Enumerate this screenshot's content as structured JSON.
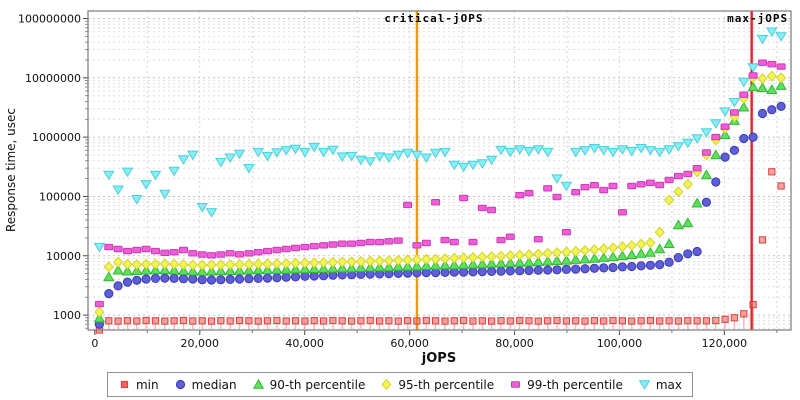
{
  "chart_data": {
    "type": "scatter",
    "title": "",
    "xlabel": "jOPS",
    "ylabel": "Response time, usec",
    "xlim": [
      -1300,
      132700
    ],
    "ylim": [
      560,
      134000000
    ],
    "y_scale": "log",
    "grid": true,
    "legend_position": "bottom",
    "x_ticks": {
      "values": [
        0,
        20000,
        40000,
        60000,
        80000,
        100000,
        120000
      ],
      "labels": [
        "0",
        "20,000",
        "40,000",
        "60,000",
        "80,000",
        "100,000",
        "120,000"
      ],
      "minor_step": 10000
    },
    "y_ticks": {
      "values": [
        1000,
        10000,
        100000,
        1000000,
        10000000,
        100000000
      ],
      "labels": [
        "1000",
        "10000",
        "100000",
        "1000000",
        "10000000",
        "100000000"
      ]
    },
    "annotations": [
      {
        "label": "critical-jOPS",
        "x": 61400,
        "color": "#e8a000",
        "label_dx": 17
      },
      {
        "label": "max-jOPS",
        "x": 125200,
        "color": "#e62222",
        "label_dx": 6
      }
    ],
    "x": [
      880,
      2660,
      4440,
      6220,
      8000,
      9780,
      11560,
      13340,
      15120,
      16900,
      18680,
      20460,
      22240,
      24020,
      25800,
      27580,
      29360,
      31140,
      32920,
      34700,
      36480,
      38260,
      40040,
      41820,
      43600,
      45380,
      47160,
      48940,
      50720,
      52500,
      54280,
      56060,
      57840,
      59620,
      61400,
      63180,
      64960,
      66740,
      68520,
      70300,
      72080,
      73860,
      75640,
      77420,
      79200,
      80980,
      82760,
      84540,
      86320,
      88100,
      89880,
      91660,
      93440,
      95220,
      97000,
      98780,
      100560,
      102340,
      104120,
      105900,
      107680,
      109460,
      111240,
      113020,
      114800,
      116580,
      118360,
      120140,
      121920,
      123700,
      125480,
      127260,
      129040,
      130820
    ],
    "series": [
      {
        "name": "min",
        "marker": "square",
        "color": "#f4645f",
        "edge": "#d94040",
        "stem": true,
        "values": [
          560,
          800,
          790,
          805,
          795,
          810,
          800,
          790,
          800,
          810,
          795,
          800,
          790,
          805,
          795,
          810,
          800,
          790,
          800,
          810,
          795,
          800,
          790,
          805,
          795,
          810,
          800,
          790,
          800,
          810,
          795,
          800,
          790,
          805,
          795,
          810,
          800,
          790,
          800,
          810,
          795,
          800,
          790,
          805,
          795,
          810,
          800,
          790,
          800,
          810,
          795,
          800,
          790,
          805,
          795,
          810,
          800,
          790,
          800,
          810,
          795,
          800,
          795,
          805,
          800,
          800,
          810,
          850,
          900,
          1050,
          1500,
          18500,
          260000,
          150000
        ]
      },
      {
        "name": "median",
        "marker": "circle",
        "color": "#5e5ed6",
        "edge": "#3939b8",
        "stem": false,
        "values": [
          700,
          2300,
          3100,
          3600,
          3850,
          4050,
          4150,
          4200,
          4150,
          4100,
          4050,
          3950,
          3900,
          3950,
          4000,
          4050,
          4100,
          4150,
          4200,
          4250,
          4350,
          4400,
          4500,
          4550,
          4600,
          4700,
          4750,
          4800,
          4850,
          4900,
          4950,
          5000,
          5050,
          5100,
          5150,
          5200,
          5200,
          5250,
          5300,
          5300,
          5350,
          5400,
          5450,
          5500,
          5550,
          5600,
          5650,
          5700,
          5750,
          5800,
          5900,
          5950,
          6050,
          6150,
          6250,
          6350,
          6500,
          6600,
          6750,
          6900,
          7100,
          7800,
          9300,
          10800,
          11800,
          80000,
          175000,
          460000,
          600000,
          950000,
          1000000,
          2500000,
          2900000,
          3300000
        ]
      },
      {
        "name": "90-th percentile",
        "marker": "triangle-up",
        "color": "#5ee05e",
        "edge": "#32b832",
        "stem": false,
        "values": [
          890,
          4400,
          5700,
          5500,
          5600,
          5700,
          5750,
          5800,
          5700,
          5600,
          5500,
          5450,
          5500,
          5550,
          5600,
          5650,
          5700,
          5750,
          5800,
          5850,
          5900,
          5950,
          6000,
          6050,
          6100,
          6150,
          6200,
          6250,
          6300,
          6400,
          6450,
          6500,
          6600,
          6650,
          6700,
          6800,
          6850,
          6950,
          7000,
          7100,
          7200,
          7300,
          7400,
          7500,
          7600,
          7700,
          7800,
          7950,
          8100,
          8250,
          8400,
          8600,
          8800,
          9000,
          9300,
          9600,
          10000,
          10400,
          10900,
          11400,
          13000,
          16000,
          33000,
          36000,
          77000,
          230000,
          500000,
          1100000,
          1900000,
          3200000,
          7000000,
          6800000,
          6300000,
          7400000
        ]
      },
      {
        "name": "95-th percentile",
        "marker": "diamond",
        "color": "#f2f259",
        "edge": "#d4d428",
        "stem": false,
        "values": [
          1120,
          6500,
          7800,
          7200,
          7100,
          7200,
          7250,
          7300,
          7200,
          7100,
          7000,
          6950,
          7000,
          7050,
          7100,
          7150,
          7200,
          7250,
          7300,
          7350,
          7400,
          7500,
          7550,
          7600,
          7700,
          7750,
          7850,
          7900,
          8000,
          8100,
          8200,
          8300,
          8400,
          8500,
          8600,
          8700,
          8800,
          8950,
          9100,
          9250,
          9400,
          9550,
          9700,
          9900,
          10100,
          10300,
          10500,
          10700,
          11000,
          11300,
          11600,
          11900,
          12300,
          12700,
          13100,
          13600,
          14200,
          14900,
          15700,
          16600,
          25000,
          87000,
          120000,
          160000,
          260000,
          500000,
          900000,
          1400000,
          2200000,
          4500000,
          10000000,
          9700000,
          10700000,
          10000000
        ]
      },
      {
        "name": "99-th percentile",
        "marker": "bar",
        "color": "#ef5ed8",
        "edge": "#cc3ab6",
        "stem": false,
        "values": [
          1530,
          14000,
          13000,
          12000,
          12500,
          13000,
          12000,
          11200,
          11500,
          12500,
          11000,
          10500,
          10200,
          10500,
          11000,
          10600,
          11000,
          11500,
          12000,
          12500,
          13000,
          13500,
          14000,
          14500,
          15000,
          15500,
          16000,
          16000,
          16500,
          17000,
          17000,
          17500,
          18000,
          72000,
          15000,
          16400,
          80000,
          18400,
          17000,
          94000,
          17000,
          64000,
          59000,
          18400,
          21000,
          105000,
          114000,
          19000,
          137000,
          98000,
          25000,
          118000,
          143000,
          155000,
          128000,
          150000,
          54000,
          150000,
          160000,
          170000,
          156000,
          190000,
          220000,
          240000,
          300000,
          550000,
          1000000,
          1500000,
          2600000,
          5200000,
          11000000,
          18000000,
          17000000,
          15500000
        ]
      },
      {
        "name": "max",
        "marker": "triangle-down",
        "color": "#86eef4",
        "edge": "#4cd0da",
        "stem": false,
        "values": [
          14000,
          230000,
          130000,
          260000,
          90000,
          160000,
          230000,
          110000,
          270000,
          420000,
          500000,
          66000,
          54000,
          380000,
          450000,
          520000,
          300000,
          560000,
          480000,
          550000,
          600000,
          630000,
          560000,
          680000,
          560000,
          610000,
          470000,
          480000,
          414000,
          390000,
          470000,
          450000,
          500000,
          540000,
          500000,
          450000,
          540000,
          560000,
          340000,
          315000,
          340000,
          360000,
          414000,
          610000,
          560000,
          620000,
          580000,
          620000,
          560000,
          200000,
          150000,
          560000,
          600000,
          650000,
          600000,
          560000,
          620000,
          580000,
          650000,
          600000,
          560000,
          620000,
          700000,
          800000,
          950000,
          1200000,
          1700000,
          2700000,
          3900000,
          8500000,
          15000000,
          45000000,
          60000000,
          50000000
        ]
      }
    ]
  }
}
